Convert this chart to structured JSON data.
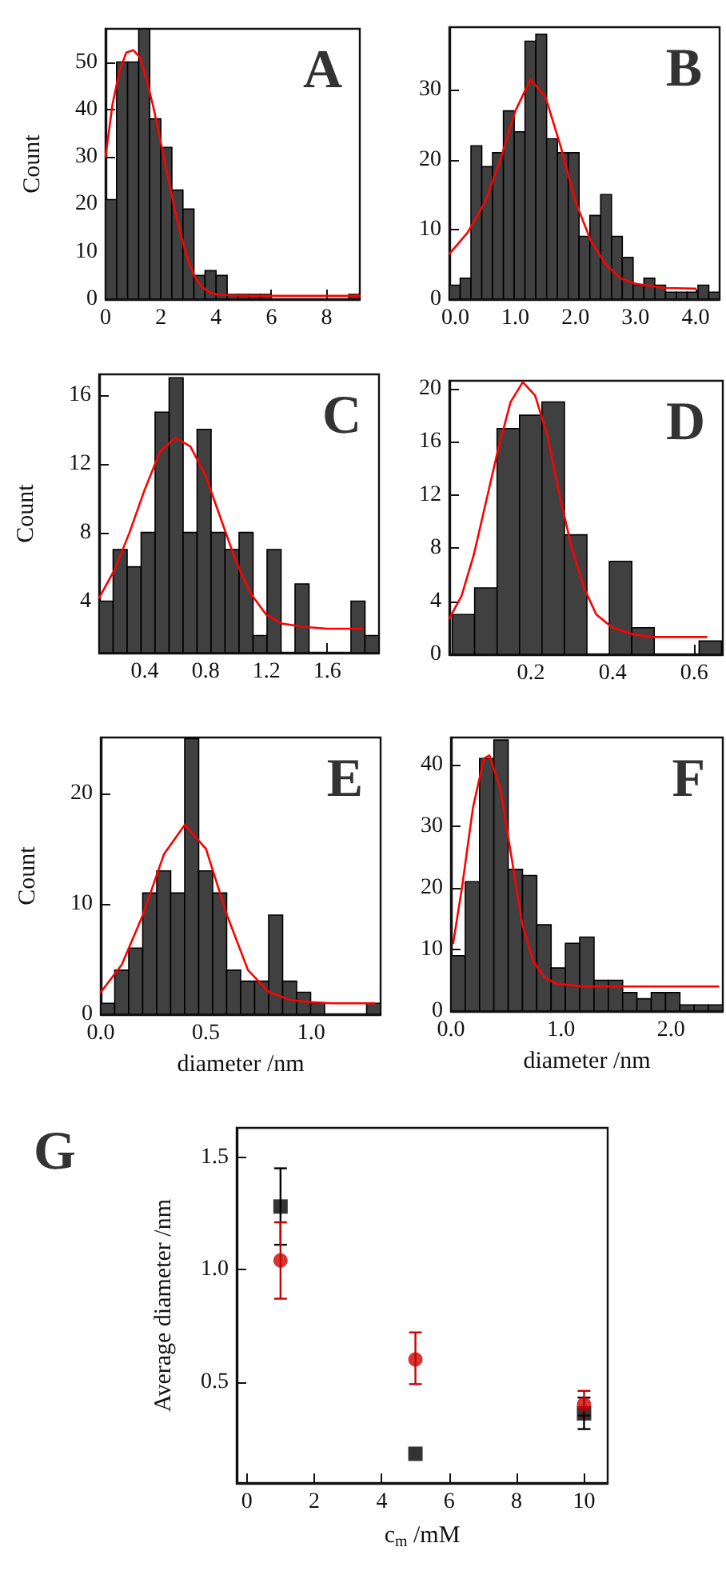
{
  "chart_data": [
    {
      "type": "histogram",
      "title": "A",
      "ylabel": "Count",
      "xlim": [
        0,
        9.2
      ],
      "ylim": [
        0,
        57
      ],
      "xticks": [
        0,
        2,
        4,
        6,
        8
      ],
      "yticks": [
        0,
        10,
        20,
        30,
        40,
        50
      ],
      "series": [
        {
          "type": "histogram",
          "color": "#404040",
          "bins": [
            0,
            0.4,
            0.8,
            1.2,
            1.6,
            2,
            2.4,
            2.8,
            3.2,
            3.6,
            4,
            4.4,
            4.8,
            5.2,
            5.6,
            6,
            6.4,
            6.8,
            7.2,
            7.6,
            8,
            8.4,
            8.8,
            9.2
          ],
          "values": [
            21,
            50,
            50,
            57,
            38,
            32,
            23,
            19,
            5,
            6,
            5,
            1,
            1,
            1,
            1,
            0,
            0,
            0,
            0,
            0,
            0,
            0,
            1
          ]
        },
        {
          "type": "line",
          "color": "#ff0000",
          "x": [
            0,
            0.25,
            0.5,
            0.75,
            1,
            1.25,
            1.5,
            1.75,
            2,
            2.25,
            2.5,
            2.75,
            3,
            3.25,
            3.5,
            3.75,
            4,
            4.5,
            5.5,
            7,
            8.5,
            9.2
          ],
          "values": [
            30,
            41,
            48,
            52,
            52.5,
            51,
            46,
            40,
            33,
            26,
            19,
            13,
            8,
            4.5,
            2.5,
            1.5,
            1,
            0.8,
            0.7,
            0.7,
            0.7,
            0.7
          ]
        }
      ]
    },
    {
      "type": "histogram",
      "title": "B",
      "xlim": [
        -0.1,
        4.4
      ],
      "ylim": [
        0,
        39
      ],
      "xticks": [
        {
          "value": 0,
          "label": "0.0"
        },
        {
          "value": 1,
          "label": "1.0"
        },
        {
          "value": 2,
          "label": "2.0"
        },
        {
          "value": 3,
          "label": "3.0"
        },
        {
          "value": 4,
          "label": "4.0"
        }
      ],
      "yticks": [
        0,
        10,
        20,
        30
      ],
      "series": [
        {
          "type": "histogram",
          "color": "#404040",
          "bins": [
            -0.1,
            0.08,
            0.26,
            0.44,
            0.62,
            0.8,
            0.98,
            1.16,
            1.34,
            1.52,
            1.7,
            1.88,
            2.06,
            2.24,
            2.42,
            2.6,
            2.78,
            2.96,
            3.14,
            3.32,
            3.5,
            3.68,
            3.86,
            4.04,
            4.22,
            4.4
          ],
          "values": [
            2,
            3,
            22,
            19,
            21,
            27,
            24,
            37,
            38,
            23,
            21,
            21,
            9,
            12,
            15,
            9,
            6,
            2,
            3,
            2,
            1,
            1,
            1,
            2,
            1
          ]
        },
        {
          "type": "line",
          "color": "#ff0000",
          "x": [
            -0.1,
            0.2,
            0.5,
            0.75,
            1,
            1.25,
            1.5,
            1.75,
            2,
            2.25,
            2.5,
            2.75,
            3,
            3.5,
            4
          ],
          "values": [
            6.5,
            9.5,
            14,
            20,
            27,
            31.5,
            29,
            22,
            14,
            8.5,
            5,
            3,
            2.2,
            1.6,
            1.5
          ]
        }
      ]
    },
    {
      "type": "histogram",
      "title": "C",
      "ylabel": "Count",
      "xlim": [
        0.1,
        1.94
      ],
      "ylim": [
        1,
        17.2
      ],
      "xticks": [
        0.4,
        0.8,
        1.2,
        1.6
      ],
      "yticks": [
        4,
        8,
        12,
        16
      ],
      "series": [
        {
          "type": "histogram",
          "color": "#404040",
          "bins": [
            0.1,
            0.192,
            0.284,
            0.376,
            0.468,
            0.56,
            0.652,
            0.744,
            0.836,
            0.928,
            1.02,
            1.112,
            1.204,
            1.296,
            1.388,
            1.48,
            1.572,
            1.664,
            1.756,
            1.848,
            1.94
          ],
          "values": [
            4,
            7,
            6,
            8,
            15,
            17,
            8,
            14,
            8,
            7,
            8,
            2,
            7,
            1,
            5,
            1,
            1,
            1,
            4,
            2
          ]
        },
        {
          "type": "line",
          "color": "#ff0000",
          "x": [
            0.1,
            0.2,
            0.3,
            0.4,
            0.5,
            0.6,
            0.7,
            0.8,
            0.9,
            1,
            1.1,
            1.2,
            1.3,
            1.45,
            1.6,
            1.83
          ],
          "values": [
            4.2,
            5.8,
            8,
            10.5,
            12.7,
            13.5,
            13,
            11.3,
            8.8,
            6.3,
            4.4,
            3.2,
            2.7,
            2.5,
            2.4,
            2.4
          ]
        }
      ]
    },
    {
      "type": "histogram",
      "title": "D",
      "xlim": [
        0,
        0.67
      ],
      "ylim": [
        0,
        20.6
      ],
      "xticks": [
        0.2,
        0.4,
        0.6
      ],
      "yticks": [
        0,
        4,
        8,
        12,
        16,
        20
      ],
      "series": [
        {
          "type": "histogram",
          "color": "#404040",
          "bins": [
            0.007,
            0.062,
            0.117,
            0.172,
            0.227,
            0.282,
            0.337,
            0.392,
            0.447,
            0.502,
            0.557,
            0.612,
            0.667
          ],
          "values": [
            3,
            5,
            17,
            18,
            19,
            9,
            0,
            7,
            2,
            0,
            0,
            1
          ]
        },
        {
          "type": "line",
          "color": "#ff0000",
          "x": [
            0,
            0.03,
            0.06,
            0.09,
            0.12,
            0.15,
            0.18,
            0.21,
            0.24,
            0.27,
            0.3,
            0.33,
            0.36,
            0.4,
            0.45,
            0.5,
            0.6,
            0.63
          ],
          "values": [
            2.7,
            4.4,
            7.5,
            11.5,
            15.5,
            19,
            20.5,
            19.5,
            16.5,
            12,
            8,
            5,
            3,
            2,
            1.5,
            1.3,
            1.3,
            1.3
          ]
        }
      ]
    },
    {
      "type": "histogram",
      "title": "E",
      "xlabel": "diameter /nm",
      "ylabel": "Count",
      "xlim": [
        0,
        1.33
      ],
      "ylim": [
        0,
        25.1
      ],
      "xticks": [
        {
          "value": 0,
          "label": "0.0"
        },
        0.5,
        {
          "value": 1,
          "label": "1.0"
        }
      ],
      "yticks": [
        0,
        10,
        20
      ],
      "series": [
        {
          "type": "histogram",
          "color": "#404040",
          "bins": [
            0,
            0.0665,
            0.133,
            0.1995,
            0.266,
            0.3325,
            0.399,
            0.4655,
            0.532,
            0.5985,
            0.665,
            0.7315,
            0.798,
            0.8645,
            0.931,
            0.9975,
            1.064,
            1.1305,
            1.197,
            1.2635,
            1.33
          ],
          "values": [
            1,
            4,
            6,
            11,
            13,
            11,
            25,
            13,
            11,
            4,
            3,
            3,
            9,
            3,
            2,
            1,
            0,
            0,
            0,
            1
          ]
        },
        {
          "type": "line",
          "color": "#ff0000",
          "x": [
            0,
            0.1,
            0.2,
            0.3,
            0.4,
            0.5,
            0.6,
            0.7,
            0.8,
            0.9,
            1,
            1.1,
            1.3
          ],
          "values": [
            2,
            4.5,
            9,
            14.5,
            17.2,
            15,
            9,
            4,
            2,
            1.3,
            1.1,
            1,
            1
          ]
        }
      ]
    },
    {
      "type": "histogram",
      "title": "F",
      "xlabel": "diameter /nm",
      "xlim": [
        0,
        2.47
      ],
      "ylim": [
        0,
        44.4
      ],
      "xticks": [
        {
          "value": 0,
          "label": "0.0"
        },
        {
          "value": 1,
          "label": "1.0"
        },
        {
          "value": 2,
          "label": "2.0"
        }
      ],
      "yticks": [
        0,
        10,
        20,
        30,
        40
      ],
      "series": [
        {
          "type": "histogram",
          "color": "#404040",
          "bins": [
            0,
            0.13,
            0.26,
            0.39,
            0.52,
            0.65,
            0.78,
            0.91,
            1.04,
            1.17,
            1.3,
            1.43,
            1.56,
            1.69,
            1.82,
            1.95,
            2.08,
            2.21,
            2.34,
            2.47
          ],
          "values": [
            9,
            21,
            41,
            44,
            23,
            22,
            14,
            7,
            11,
            12,
            5,
            5,
            3,
            2,
            3,
            3,
            1,
            1,
            1
          ]
        },
        {
          "type": "line",
          "color": "#ff0000",
          "x": [
            0.02,
            0.1,
            0.2,
            0.3,
            0.35,
            0.45,
            0.55,
            0.65,
            0.75,
            0.85,
            0.95,
            1.2,
            1.6,
            2,
            2.43
          ],
          "values": [
            11,
            20,
            33,
            41,
            41.5,
            36,
            25,
            14,
            8,
            5.5,
            4.5,
            4,
            4,
            4,
            4
          ]
        }
      ]
    },
    {
      "type": "scatter",
      "title": "G",
      "xlabel": "c$_{m}$ /mM",
      "ylabel": "Average diameter /nm",
      "x": [
        1,
        5,
        10
      ],
      "xlim": [
        -0.3,
        10.7
      ],
      "ylim": [
        0.05,
        1.63
      ],
      "xticks": [
        0,
        2,
        4,
        6,
        8,
        10
      ],
      "yticks": [
        {
          "value": 0.5,
          "label": "0.5"
        },
        {
          "value": 1,
          "label": "1.0"
        },
        {
          "value": 1.5,
          "label": "1.5"
        }
      ],
      "series": [
        {
          "color": "#000000",
          "marker": "square",
          "values": [
            1.28,
            0.18,
            0.36
          ],
          "errors": [
            [
              1.11,
              1.45
            ],
            null,
            [
              0.29,
              0.43
            ]
          ]
        },
        {
          "color": "#cc0000",
          "marker": "circle",
          "values": [
            1.04,
            0.6,
            0.4
          ],
          "errors": [
            [
              0.87,
              1.21
            ],
            [
              0.49,
              0.72
            ],
            [
              0.35,
              0.46
            ]
          ]
        }
      ]
    }
  ]
}
